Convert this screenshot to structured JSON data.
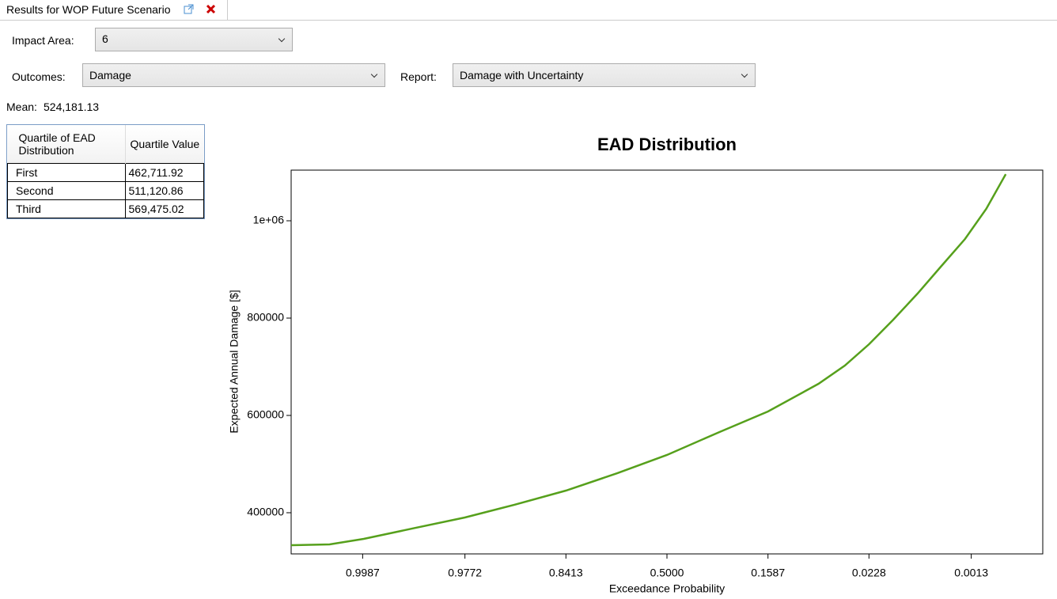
{
  "tab": {
    "title": "Results for WOP Future Scenario"
  },
  "controls": {
    "impact_area_label": "Impact Area:",
    "impact_area_value": "6",
    "outcomes_label": "Outcomes:",
    "outcomes_value": "Damage",
    "report_label": "Report:",
    "report_value": "Damage with Uncertainty"
  },
  "mean": {
    "label": "Mean:",
    "value": "524,181.13"
  },
  "table": {
    "headers": [
      "Quartile of EAD Distribution",
      "Quartile Value"
    ],
    "rows": [
      [
        "First",
        "462,711.92"
      ],
      [
        "Second",
        "511,120.86"
      ],
      [
        "Third",
        "569,475.02"
      ]
    ]
  },
  "chart_data": {
    "type": "line",
    "title": "EAD Distribution",
    "x_label": "Exceedance Probability",
    "y_label": "Expected Annual Damage [$]",
    "x_scale": "probit",
    "color": "#56a01c",
    "x": [
      0.9999,
      0.99958,
      0.99865,
      0.99413,
      0.97725,
      0.93448,
      0.84134,
      0.68793,
      0.5,
      0.30153,
      0.15866,
      0.06681,
      0.0392,
      0.02275,
      0.01255,
      0.00657,
      0.00336,
      0.00159,
      0.00079,
      0.0004
    ],
    "values": [
      333300,
      335000,
      346300,
      367500,
      390200,
      416300,
      445500,
      481300,
      518700,
      565900,
      608100,
      665000,
      702400,
      746300,
      796700,
      850400,
      905700,
      962600,
      1024400,
      1095800
    ],
    "xlim": [
      0.9999,
      0.0001
    ],
    "xticks": [
      0.9987,
      0.9772,
      0.8413,
      {
        "value": 0.5,
        "label": "0.5000"
      },
      0.1587,
      0.0228,
      0.0013
    ],
    "ylim": [
      315400,
      1104100
    ],
    "yticks": [
      400000,
      600000,
      800000,
      {
        "value": 1000000,
        "label": "1e+06"
      }
    ]
  }
}
